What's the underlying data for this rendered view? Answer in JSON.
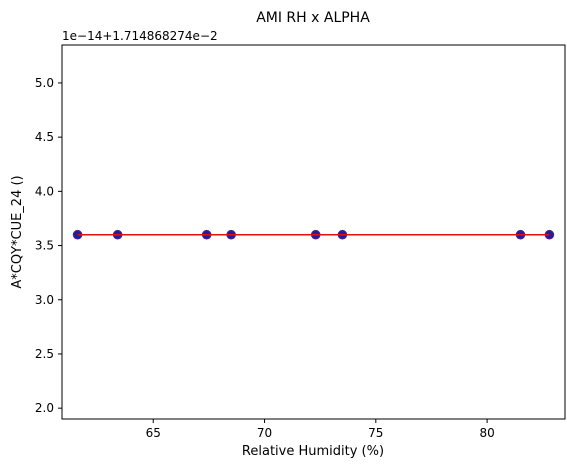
{
  "chart_data": {
    "type": "scatter",
    "title": "AMI RH x ALPHA",
    "xlabel": "Relative Humidity (%)",
    "ylabel": "A*CQY*CUE_24 ()",
    "offset_text": "1e−14+1.714868274e−2",
    "xlim": [
      60.9,
      83.5
    ],
    "ylim": [
      1.9,
      5.35
    ],
    "x_ticks": [
      {
        "value": 65,
        "label": "65"
      },
      {
        "value": 70,
        "label": "70"
      },
      {
        "value": 75,
        "label": "75"
      },
      {
        "value": 80,
        "label": "80"
      }
    ],
    "y_ticks": [
      {
        "value": 2.0,
        "label": "2.0"
      },
      {
        "value": 2.5,
        "label": "2.5"
      },
      {
        "value": 3.0,
        "label": "3.0"
      },
      {
        "value": 3.5,
        "label": "3.5"
      },
      {
        "value": 4.0,
        "label": "4.0"
      },
      {
        "value": 4.5,
        "label": "4.5"
      },
      {
        "value": 5.0,
        "label": "5.0"
      }
    ],
    "grid": false,
    "points": {
      "x": [
        61.6,
        63.4,
        67.4,
        68.5,
        72.3,
        73.5,
        81.5,
        82.8
      ],
      "y": [
        3.6,
        3.6,
        3.6,
        3.6,
        3.6,
        3.6,
        3.6,
        3.6
      ],
      "color": "#1f1f9a",
      "edge_color": "#4b1f8a"
    },
    "fit_line": {
      "x": [
        61.6,
        82.8
      ],
      "y": [
        3.6,
        3.6
      ],
      "color": "#e01010"
    }
  }
}
